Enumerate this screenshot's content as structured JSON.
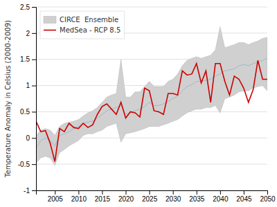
{
  "chart_data": {
    "type": "line",
    "ylabel": "Temperature Anomaly in Celsius (2000-2009)",
    "x": [
      2001,
      2002,
      2003,
      2004,
      2005,
      2006,
      2007,
      2008,
      2009,
      2010,
      2011,
      2012,
      2013,
      2014,
      2015,
      2016,
      2017,
      2018,
      2019,
      2020,
      2021,
      2022,
      2023,
      2024,
      2025,
      2026,
      2027,
      2028,
      2029,
      2030,
      2031,
      2032,
      2033,
      2034,
      2035,
      2036,
      2037,
      2038,
      2039,
      2040,
      2041,
      2042,
      2043,
      2044,
      2045,
      2046,
      2047,
      2048,
      2049,
      2050
    ],
    "series": [
      {
        "name": "CIRCE  Ensemble",
        "type": "area",
        "color": "#d0d0d0",
        "lower": [
          -0.48,
          -0.38,
          -0.35,
          -0.38,
          -0.52,
          -0.28,
          -0.22,
          -0.15,
          -0.1,
          -0.05,
          0.05,
          0.08,
          0.08,
          0.12,
          0.15,
          0.22,
          0.25,
          0.28,
          -0.08,
          0.08,
          0.1,
          0.12,
          0.15,
          0.18,
          0.22,
          0.22,
          0.22,
          0.25,
          0.28,
          0.32,
          0.35,
          0.42,
          0.48,
          0.52,
          0.55,
          0.55,
          0.58,
          0.58,
          0.62,
          0.48,
          0.75,
          0.78,
          0.82,
          0.88,
          0.9,
          0.9,
          0.95,
          0.98,
          1.0,
          0.9
        ],
        "upper": [
          0.05,
          0.15,
          0.18,
          0.15,
          0.05,
          0.22,
          0.28,
          0.3,
          0.32,
          0.35,
          0.42,
          0.48,
          0.52,
          0.58,
          0.68,
          0.78,
          0.82,
          0.85,
          1.5,
          0.78,
          0.78,
          0.88,
          0.88,
          0.98,
          1.08,
          0.98,
          0.98,
          0.98,
          1.08,
          1.12,
          1.22,
          1.38,
          1.48,
          1.52,
          1.55,
          1.52,
          1.55,
          1.58,
          1.68,
          2.12,
          1.72,
          1.75,
          1.78,
          1.82,
          1.82,
          1.78,
          1.82,
          1.85,
          1.9,
          1.92
        ]
      },
      {
        "type": "line",
        "color": "#a0b8c8",
        "values": [
          -0.2,
          -0.05,
          0.0,
          -0.05,
          -0.15,
          0.05,
          0.08,
          0.12,
          0.18,
          0.22,
          0.28,
          0.3,
          0.32,
          0.38,
          0.45,
          0.52,
          0.55,
          0.58,
          0.62,
          0.45,
          0.48,
          0.52,
          0.55,
          0.6,
          0.68,
          0.62,
          0.62,
          0.65,
          0.7,
          0.75,
          0.8,
          0.9,
          0.98,
          1.02,
          1.08,
          1.08,
          1.1,
          1.12,
          1.18,
          1.22,
          1.28,
          1.3,
          1.32,
          1.38,
          1.4,
          1.38,
          1.42,
          1.45,
          1.48,
          1.52
        ]
      },
      {
        "name": "MedSea - RCP 8.5",
        "type": "line",
        "color": "#cc0000",
        "values": [
          0.32,
          0.12,
          0.14,
          -0.1,
          -0.45,
          0.18,
          0.12,
          0.28,
          0.2,
          0.18,
          0.28,
          0.2,
          0.25,
          0.45,
          0.6,
          0.65,
          0.55,
          0.45,
          0.68,
          0.38,
          0.5,
          0.48,
          0.4,
          0.95,
          0.9,
          0.52,
          0.5,
          0.45,
          0.85,
          0.85,
          0.82,
          1.28,
          1.2,
          1.22,
          1.42,
          1.05,
          1.28,
          0.68,
          1.42,
          1.42,
          1.08,
          0.82,
          1.18,
          1.12,
          0.95,
          0.68,
          0.92,
          1.48,
          1.12,
          1.12
        ]
      }
    ],
    "xlim": [
      2001,
      2050
    ],
    "ylim": [
      -1.0,
      2.5
    ],
    "xticks": [
      2005,
      2010,
      2015,
      2020,
      2025,
      2030,
      2035,
      2040,
      2045,
      2050
    ],
    "yticks": [
      -1,
      -0.5,
      0,
      0.5,
      1,
      1.5,
      2,
      2.5
    ],
    "grid": "y",
    "legend": "upper left"
  }
}
